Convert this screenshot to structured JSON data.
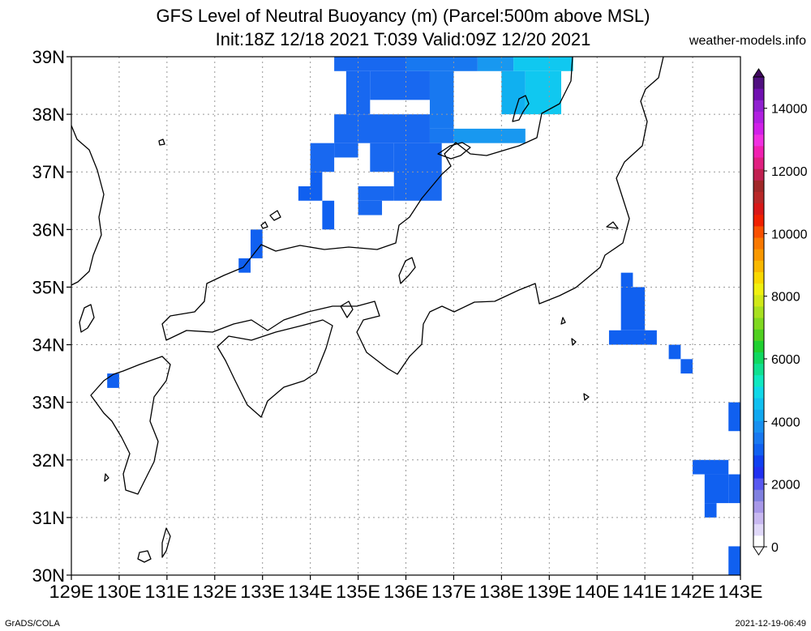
{
  "header": {
    "title_line1": "GFS Level of Neutral Buoyancy (m) (Parcel:500m above MSL)",
    "title_line2": "Init:18Z 12/18 2021 T:039 Valid:09Z 12/20 2021",
    "credit": "weather-models.info"
  },
  "footer": {
    "left": "GrADS/COLA",
    "right": "2021-12-19-06:49"
  },
  "map": {
    "lat_labels": [
      "39N",
      "38N",
      "37N",
      "36N",
      "35N",
      "34N",
      "33N",
      "32N",
      "31N",
      "30N"
    ],
    "lon_labels": [
      "129E",
      "130E",
      "131E",
      "132E",
      "133E",
      "134E",
      "135E",
      "136E",
      "137E",
      "138E",
      "139E",
      "140E",
      "141E",
      "142E",
      "143E"
    ],
    "lon_range": [
      129,
      143
    ],
    "lat_range": [
      30,
      39
    ],
    "gridlines": true
  },
  "colorbar": {
    "labels": [
      "14000",
      "12000",
      "10000",
      "8000",
      "6000",
      "4000",
      "2000",
      "0"
    ],
    "colors": [
      "#ffffff",
      "#e0d8f8",
      "#c8b8f0",
      "#a898e8",
      "#8080e0",
      "#5858f0",
      "#2030f0",
      "#1040f0",
      "#1060f0",
      "#1878f0",
      "#1890f0",
      "#10a8f0",
      "#10c0f0",
      "#10d8e8",
      "#10e8c0",
      "#10e090",
      "#10d860",
      "#20d030",
      "#50d020",
      "#80d820",
      "#a8e020",
      "#d0e818",
      "#f0f010",
      "#f8d800",
      "#f8b800",
      "#f89800",
      "#f87800",
      "#f85000",
      "#f02000",
      "#d81818",
      "#b82828",
      "#a02828",
      "#c02050",
      "#e02080",
      "#f020b0",
      "#f030e0",
      "#d020e8",
      "#b020e0",
      "#9020d0",
      "#7010b0",
      "#501080"
    ]
  },
  "chart_data": {
    "type": "heatmap",
    "title": "GFS Level of Neutral Buoyancy (m) (Parcel:500m above MSL)",
    "units": "m",
    "grid_step_deg": 0.25,
    "cells": [
      {
        "lon": 134.5,
        "lat": 38.75,
        "w": 1.5,
        "h": 0.25,
        "value": 2400
      },
      {
        "lon": 136.0,
        "lat": 38.75,
        "w": 1.5,
        "h": 0.25,
        "value": 2500
      },
      {
        "lon": 137.5,
        "lat": 38.75,
        "w": 0.75,
        "h": 0.25,
        "value": 2700
      },
      {
        "lon": 138.25,
        "lat": 38.75,
        "w": 1.25,
        "h": 0.25,
        "value": 3200
      },
      {
        "lon": 134.75,
        "lat": 38.0,
        "w": 0.5,
        "h": 0.75,
        "value": 2400
      },
      {
        "lon": 135.25,
        "lat": 38.25,
        "w": 1.25,
        "h": 0.5,
        "value": 2400
      },
      {
        "lon": 136.5,
        "lat": 37.75,
        "w": 0.5,
        "h": 1.0,
        "value": 2500
      },
      {
        "lon": 138.0,
        "lat": 38.0,
        "w": 0.5,
        "h": 0.75,
        "value": 2900
      },
      {
        "lon": 138.5,
        "lat": 38.0,
        "w": 0.75,
        "h": 0.75,
        "value": 3300
      },
      {
        "lon": 134.5,
        "lat": 37.5,
        "w": 0.5,
        "h": 0.5,
        "value": 2400
      },
      {
        "lon": 135.0,
        "lat": 37.5,
        "w": 1.5,
        "h": 0.5,
        "value": 2400
      },
      {
        "lon": 136.5,
        "lat": 37.5,
        "w": 0.5,
        "h": 0.25,
        "value": 2600
      },
      {
        "lon": 137.0,
        "lat": 37.5,
        "w": 1.5,
        "h": 0.25,
        "value": 2800
      },
      {
        "lon": 134.0,
        "lat": 37.0,
        "w": 0.5,
        "h": 0.5,
        "value": 2300
      },
      {
        "lon": 134.5,
        "lat": 37.25,
        "w": 0.5,
        "h": 0.25,
        "value": 2300
      },
      {
        "lon": 135.25,
        "lat": 37.0,
        "w": 0.5,
        "h": 0.5,
        "value": 2400
      },
      {
        "lon": 135.75,
        "lat": 36.5,
        "w": 1.0,
        "h": 1.0,
        "value": 2300
      },
      {
        "lon": 134.0,
        "lat": 36.75,
        "w": 0.25,
        "h": 0.25,
        "value": 2200
      },
      {
        "lon": 133.75,
        "lat": 36.5,
        "w": 0.5,
        "h": 0.25,
        "value": 2200
      },
      {
        "lon": 134.25,
        "lat": 36.0,
        "w": 0.25,
        "h": 0.5,
        "value": 2200
      },
      {
        "lon": 135.0,
        "lat": 36.5,
        "w": 0.75,
        "h": 0.25,
        "value": 2300
      },
      {
        "lon": 135.0,
        "lat": 36.25,
        "w": 0.5,
        "h": 0.25,
        "value": 2300
      },
      {
        "lon": 132.75,
        "lat": 35.5,
        "w": 0.25,
        "h": 0.5,
        "value": 2200
      },
      {
        "lon": 132.5,
        "lat": 35.25,
        "w": 0.25,
        "h": 0.25,
        "value": 2200
      },
      {
        "lon": 140.5,
        "lat": 35.0,
        "w": 0.25,
        "h": 0.25,
        "value": 2200
      },
      {
        "lon": 140.5,
        "lat": 34.25,
        "w": 0.5,
        "h": 0.75,
        "value": 2200
      },
      {
        "lon": 140.25,
        "lat": 34.0,
        "w": 1.0,
        "h": 0.25,
        "value": 2200
      },
      {
        "lon": 141.5,
        "lat": 33.75,
        "w": 0.25,
        "h": 0.25,
        "value": 2200
      },
      {
        "lon": 141.75,
        "lat": 33.5,
        "w": 0.25,
        "h": 0.25,
        "value": 2200
      },
      {
        "lon": 129.75,
        "lat": 33.25,
        "w": 0.25,
        "h": 0.25,
        "value": 2200
      },
      {
        "lon": 142.75,
        "lat": 32.5,
        "w": 0.25,
        "h": 0.5,
        "value": 2200
      },
      {
        "lon": 142.0,
        "lat": 31.75,
        "w": 0.75,
        "h": 0.25,
        "value": 2200
      },
      {
        "lon": 142.25,
        "lat": 31.25,
        "w": 0.5,
        "h": 0.5,
        "value": 2200
      },
      {
        "lon": 142.75,
        "lat": 31.25,
        "w": 0.25,
        "h": 0.5,
        "value": 2200
      },
      {
        "lon": 142.25,
        "lat": 31.0,
        "w": 0.25,
        "h": 0.25,
        "value": 2200
      },
      {
        "lon": 142.75,
        "lat": 30.0,
        "w": 0.25,
        "h": 0.5,
        "value": 2200
      }
    ]
  }
}
